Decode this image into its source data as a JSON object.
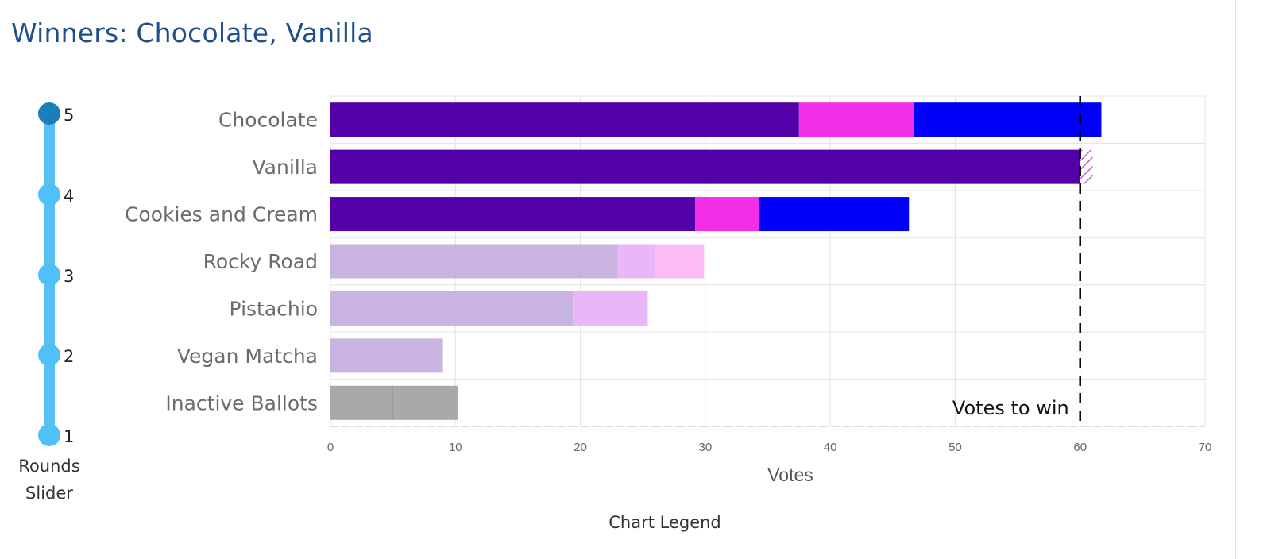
{
  "title": "Winners: Chocolate, Vanilla",
  "slider": {
    "stops": [
      "5",
      "4",
      "3",
      "2",
      "1"
    ],
    "selected": "5",
    "caption_line1": "Rounds",
    "caption_line2": "Slider"
  },
  "legend_caption": "Chart Legend",
  "colors": {
    "round1": "#5200a8",
    "round2": "#f22ee6",
    "round3": "#0000fa",
    "overflow_hatch": "#c060d6",
    "eliminated_round1": "#c8b3e1",
    "eliminated_round2": "#e9b6f7",
    "eliminated_round3": "#fbbcf3",
    "inactive": "#a9a9a9",
    "threshold": "#000000"
  },
  "chart_data": {
    "type": "bar",
    "orientation": "horizontal",
    "stacked": true,
    "categories": [
      "Chocolate",
      "Vanilla",
      "Cookies and Cream",
      "Rocky Road",
      "Pistachio",
      "Vegan Matcha",
      "Inactive Ballots"
    ],
    "series": [
      {
        "values": [
          37.5,
          60,
          29.2,
          23,
          19.4,
          9,
          5
        ]
      },
      {
        "values": [
          9.2,
          0,
          5.1,
          3,
          6,
          0,
          5.2
        ]
      },
      {
        "values": [
          15,
          1,
          12,
          3.9,
          0,
          0,
          0
        ]
      }
    ],
    "status": [
      "active",
      "active",
      "active",
      "eliminated",
      "eliminated",
      "eliminated",
      "inactive"
    ],
    "threshold": 60,
    "threshold_label": "Votes to win",
    "xlabel": "Votes",
    "xlim": [
      0,
      70
    ],
    "xticks": [
      "0",
      "10",
      "20",
      "30",
      "40",
      "50",
      "60",
      "70"
    ],
    "grid": true
  }
}
